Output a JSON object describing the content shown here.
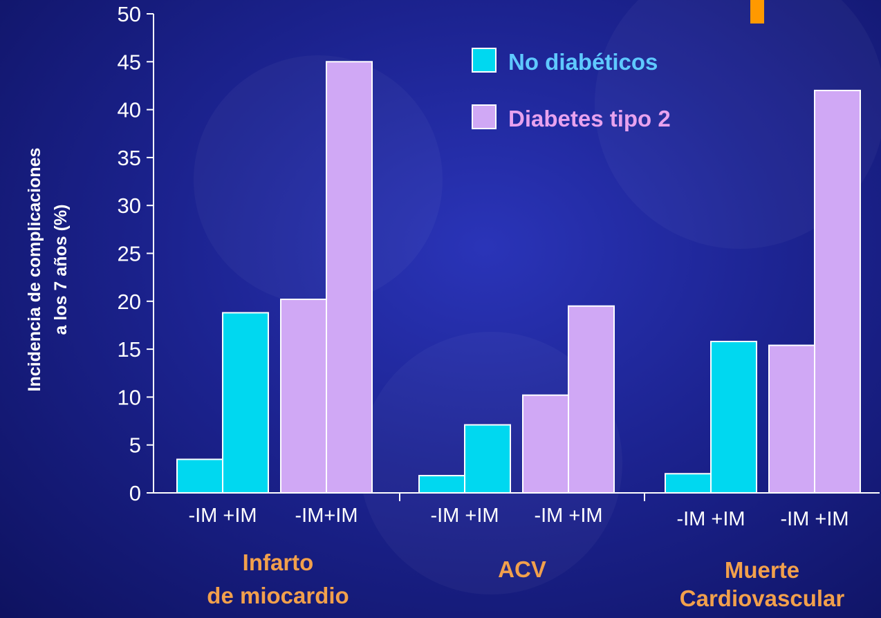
{
  "chart_data": {
    "type": "bar",
    "ylabel_lines": [
      "Incidencia de complicaciones",
      "a los 7 años (%)"
    ],
    "ylim": [
      0,
      50
    ],
    "yticks": [
      "0",
      "5",
      "10",
      "15",
      "20",
      "25",
      "30",
      "35",
      "40",
      "45",
      "50"
    ],
    "groups": [
      {
        "label_lines": [
          "Infarto",
          "de miocardio"
        ],
        "sublabels": [
          "-IM +IM",
          "-IM+IM"
        ]
      },
      {
        "label_lines": [
          "ACV"
        ],
        "sublabels": [
          "-IM +IM",
          "-IM +IM"
        ]
      },
      {
        "label_lines": [
          "Muerte",
          "Cardiovascular"
        ],
        "sublabels": [
          "-IM +IM",
          "-IM +IM"
        ]
      }
    ],
    "categories": [
      "-IM",
      "+IM"
    ],
    "series": [
      {
        "name": "No diabéticos",
        "color": "#00d8f0",
        "legend_text_color": "#5fc9ff",
        "values": [
          [
            3.5,
            18.8
          ],
          [
            1.8,
            7.1
          ],
          [
            2.0,
            15.8
          ]
        ]
      },
      {
        "name": "Diabetes tipo 2",
        "color": "#d0a8f5",
        "legend_text_color": "#e8a2ee",
        "values": [
          [
            20.2,
            45.0
          ],
          [
            10.2,
            19.5
          ],
          [
            15.4,
            42.0
          ]
        ]
      }
    ],
    "grid": false,
    "legend_position": "top-right"
  }
}
